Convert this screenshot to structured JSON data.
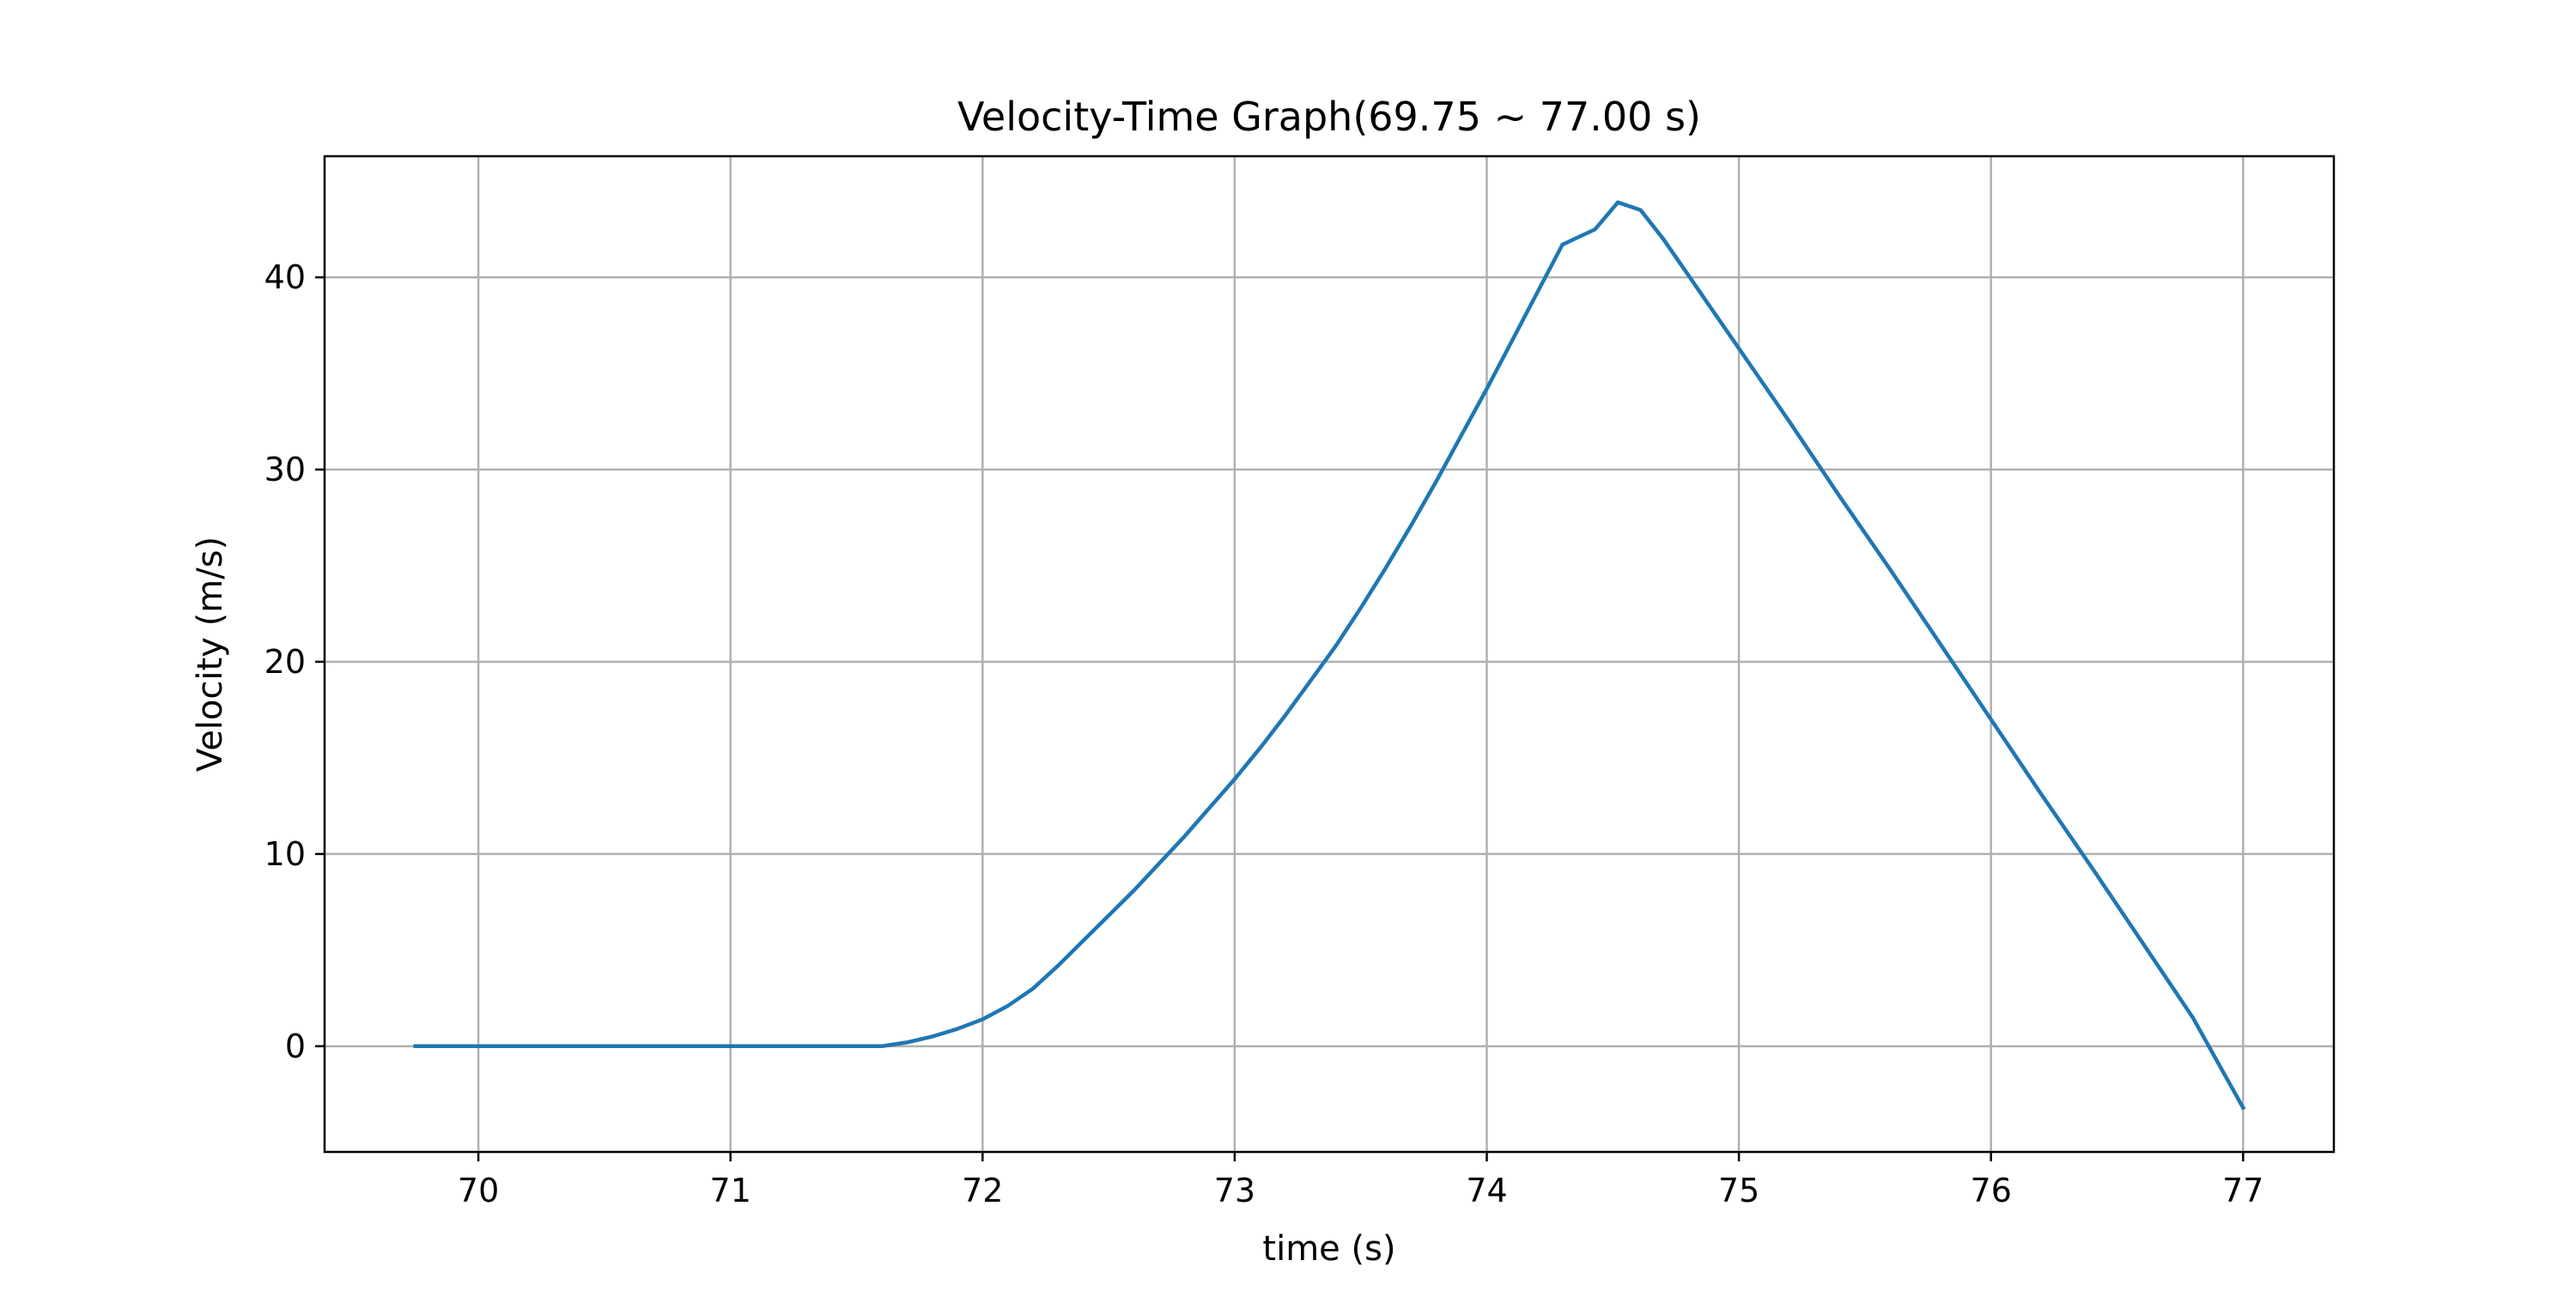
{
  "chart_data": {
    "type": "line",
    "title": "Velocity-Time Graph(69.75 ~ 77.00 s)",
    "xlabel": "time (s)",
    "ylabel": "Velocity (m/s)",
    "xlim": [
      69.39,
      77.36
    ],
    "ylim": [
      -5.5,
      46.3
    ],
    "xticks": [
      70,
      71,
      72,
      73,
      74,
      75,
      76,
      77
    ],
    "xtick_labels": [
      "70",
      "71",
      "72",
      "73",
      "74",
      "75",
      "76",
      "77"
    ],
    "yticks": [
      0,
      10,
      20,
      30,
      40
    ],
    "ytick_labels": [
      "0",
      "10",
      "20",
      "30",
      "40"
    ],
    "grid": true,
    "colors": {
      "line": "#1f77b4",
      "grid": "#b0b0b0",
      "frame": "#000000"
    },
    "series": [
      {
        "name": "velocity",
        "x": [
          69.75,
          70.0,
          70.5,
          71.0,
          71.5,
          71.6,
          71.7,
          71.8,
          71.9,
          72.0,
          72.1,
          72.2,
          72.3,
          72.4,
          72.5,
          72.6,
          72.7,
          72.8,
          72.9,
          73.0,
          73.1,
          73.2,
          73.3,
          73.4,
          73.5,
          73.6,
          73.7,
          73.8,
          73.9,
          74.0,
          74.1,
          74.2,
          74.3,
          74.43,
          74.52,
          74.61,
          74.7,
          74.8,
          74.9,
          75.0,
          75.2,
          75.4,
          75.6,
          75.8,
          76.0,
          76.2,
          76.4,
          76.6,
          76.8,
          77.0
        ],
        "values": [
          0.0,
          0.0,
          0.0,
          0.0,
          0.0,
          0.0,
          0.2,
          0.5,
          0.9,
          1.4,
          2.1,
          3.0,
          4.2,
          5.5,
          6.8,
          8.1,
          9.5,
          10.9,
          12.4,
          13.9,
          15.5,
          17.2,
          19.0,
          20.8,
          22.8,
          24.9,
          27.1,
          29.4,
          31.8,
          34.2,
          36.7,
          39.2,
          41.7,
          42.5,
          43.9,
          43.5,
          42.0,
          40.1,
          38.2,
          36.3,
          32.5,
          28.6,
          24.8,
          20.9,
          17.0,
          13.1,
          9.3,
          5.4,
          1.5,
          -3.2
        ]
      }
    ]
  }
}
